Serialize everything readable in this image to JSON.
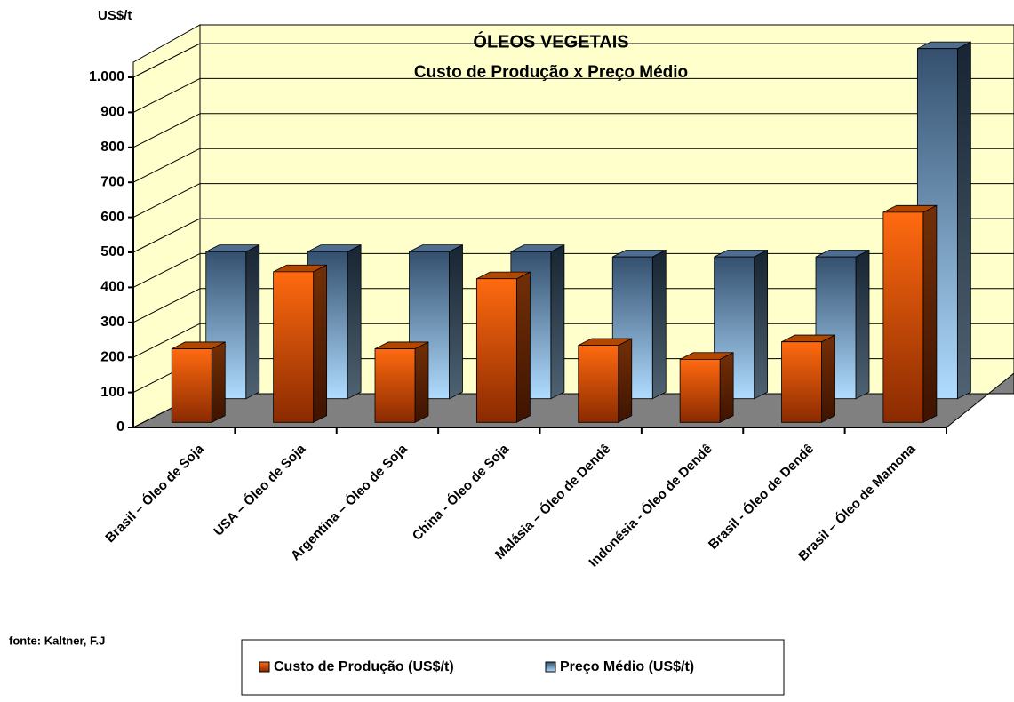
{
  "chart_data": {
    "type": "bar3d",
    "title": "ÓLEOS VEGETAIS",
    "subtitle": "Custo de Produção x Preço Médio",
    "y_axis_label": "US$/t",
    "source": "fonte: Kaltner, F.J",
    "categories": [
      "Brasil – Óleo de Soja",
      "USA – Óleo de Soja",
      "Argentina – Óleo de Soja",
      "China - Óleo de Soja",
      "Malásia – Óleo de Dendê",
      "Indonésia - Óleo de Dendê",
      "Brasil - Óleo de Dendê",
      "Brasil – Óleo de Mamona"
    ],
    "series": [
      {
        "name": "Custo de Produção (US$/t)",
        "color": "#ff6600",
        "values": [
          210,
          430,
          210,
          410,
          220,
          180,
          230,
          600
        ]
      },
      {
        "name": "Preço Médio (US$/t)",
        "color": "#6f9ccc",
        "values": [
          420,
          420,
          420,
          420,
          405,
          405,
          405,
          1000
        ]
      }
    ],
    "ylim": [
      0,
      1000
    ],
    "yticks": [
      0,
      100,
      200,
      300,
      400,
      500,
      600,
      700,
      800,
      900,
      {
        "value": 1000,
        "label": "1.000"
      }
    ],
    "grid": true
  }
}
